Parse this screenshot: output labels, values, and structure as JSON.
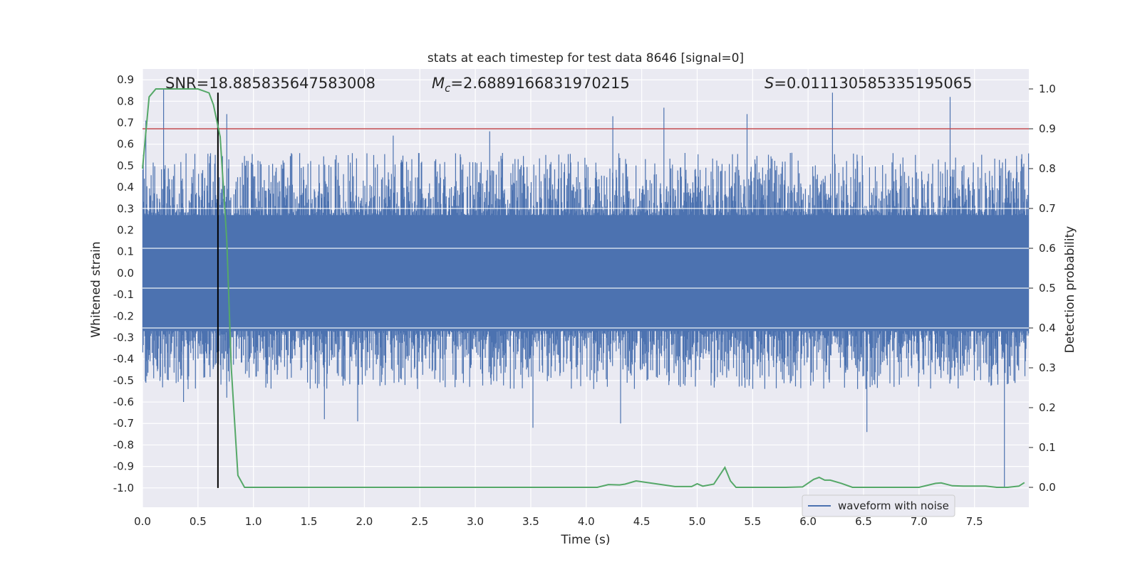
{
  "chart_data": {
    "type": "line",
    "title": "stats at each timestep for test data 8646 [signal=0]",
    "xlabel": "Time (s)",
    "ylabel_left": "Whitened strain",
    "ylabel_right": "Detection probability",
    "xlim": [
      0.0,
      7.99
    ],
    "ylim_left": [
      -1.09,
      0.95
    ],
    "ylim_right": [
      -0.05,
      1.05
    ],
    "grid": true,
    "legend_position": "lower-right",
    "x_ticks": [
      "0.0",
      "0.5",
      "1.0",
      "1.5",
      "2.0",
      "2.5",
      "3.0",
      "3.5",
      "4.0",
      "4.5",
      "5.0",
      "5.5",
      "6.0",
      "6.5",
      "7.0",
      "7.5"
    ],
    "y_ticks_left": [
      "0.9",
      "0.8",
      "0.7",
      "0.6",
      "0.5",
      "0.4",
      "0.3",
      "0.2",
      "0.1",
      "0.0",
      "-0.1",
      "-0.2",
      "-0.3",
      "-0.4",
      "-0.5",
      "-0.6",
      "-0.7",
      "-0.8",
      "-0.9",
      "-1.0"
    ],
    "y_ticks_right": [
      "1.0",
      "0.9",
      "0.8",
      "0.7",
      "0.6",
      "0.5",
      "0.4",
      "0.3",
      "0.2",
      "0.1",
      "0.0"
    ],
    "annotations": {
      "snr": "SNR=18.885835647583008",
      "mc_symbol": "M",
      "mc_subscript": "c",
      "mc_value": "=2.6889166831970215",
      "s_symbol": "S",
      "s_value": "=0.011130585335195065"
    },
    "threshold_probability": 0.9,
    "event_time_vertical_line": 0.68,
    "series": [
      {
        "name": "waveform with noise",
        "color": "#4c72b0",
        "axis": "left",
        "notable_peaks_positive": [
          [
            0.03,
            0.71
          ],
          [
            0.19,
            0.86
          ],
          [
            0.76,
            0.74
          ],
          [
            2.26,
            0.64
          ],
          [
            3.13,
            0.66
          ],
          [
            4.24,
            0.73
          ],
          [
            4.7,
            0.77
          ],
          [
            5.45,
            0.74
          ],
          [
            6.22,
            0.84
          ],
          [
            7.28,
            0.82
          ]
        ],
        "notable_peaks_negative": [
          [
            0.03,
            -0.48
          ],
          [
            0.37,
            -0.6
          ],
          [
            0.76,
            -0.58
          ],
          [
            1.64,
            -0.68
          ],
          [
            1.94,
            -0.69
          ],
          [
            3.52,
            -0.72
          ],
          [
            4.31,
            -0.7
          ],
          [
            6.53,
            -0.74
          ],
          [
            7.77,
            -1.0
          ]
        ]
      },
      {
        "color": "#55a868",
        "axis": "right",
        "x": [
          0.0,
          0.06,
          0.12,
          0.2,
          0.3,
          0.4,
          0.5,
          0.6,
          0.64,
          0.7,
          0.76,
          0.8,
          0.86,
          0.92,
          1.0,
          1.1,
          1.2,
          1.3,
          1.4,
          1.5,
          1.7,
          1.9,
          2.1,
          2.3,
          2.5,
          2.7,
          2.9,
          3.1,
          3.3,
          3.5,
          3.7,
          3.9,
          4.1,
          4.2,
          4.3,
          4.35,
          4.45,
          4.6,
          4.8,
          4.95,
          5.0,
          5.05,
          5.15,
          5.25,
          5.3,
          5.35,
          5.45,
          5.6,
          5.8,
          5.95,
          6.05,
          6.1,
          6.15,
          6.2,
          6.3,
          6.4,
          6.6,
          6.8,
          7.0,
          7.15,
          7.2,
          7.3,
          7.4,
          7.6,
          7.7,
          7.8,
          7.9,
          7.95
        ],
        "y": [
          0.8,
          0.98,
          1.0,
          1.0,
          1.0,
          1.0,
          1.0,
          0.99,
          0.96,
          0.88,
          0.62,
          0.3,
          0.03,
          0.0,
          0.0,
          0.0,
          0.0,
          0.0,
          0.0,
          0.0,
          0.0,
          0.0,
          0.0,
          0.0,
          0.0,
          0.0,
          0.0,
          0.0,
          0.0,
          0.0,
          0.0,
          0.0,
          0.0,
          0.007,
          0.006,
          0.008,
          0.016,
          0.01,
          0.002,
          0.002,
          0.009,
          0.003,
          0.008,
          0.05,
          0.016,
          0.0,
          0.0,
          0.0,
          0.0,
          0.001,
          0.02,
          0.025,
          0.018,
          0.018,
          0.01,
          0.0,
          0.0,
          0.0,
          0.0,
          0.01,
          0.011,
          0.004,
          0.003,
          0.003,
          0.0,
          0.0,
          0.003,
          0.012
        ]
      }
    ]
  }
}
